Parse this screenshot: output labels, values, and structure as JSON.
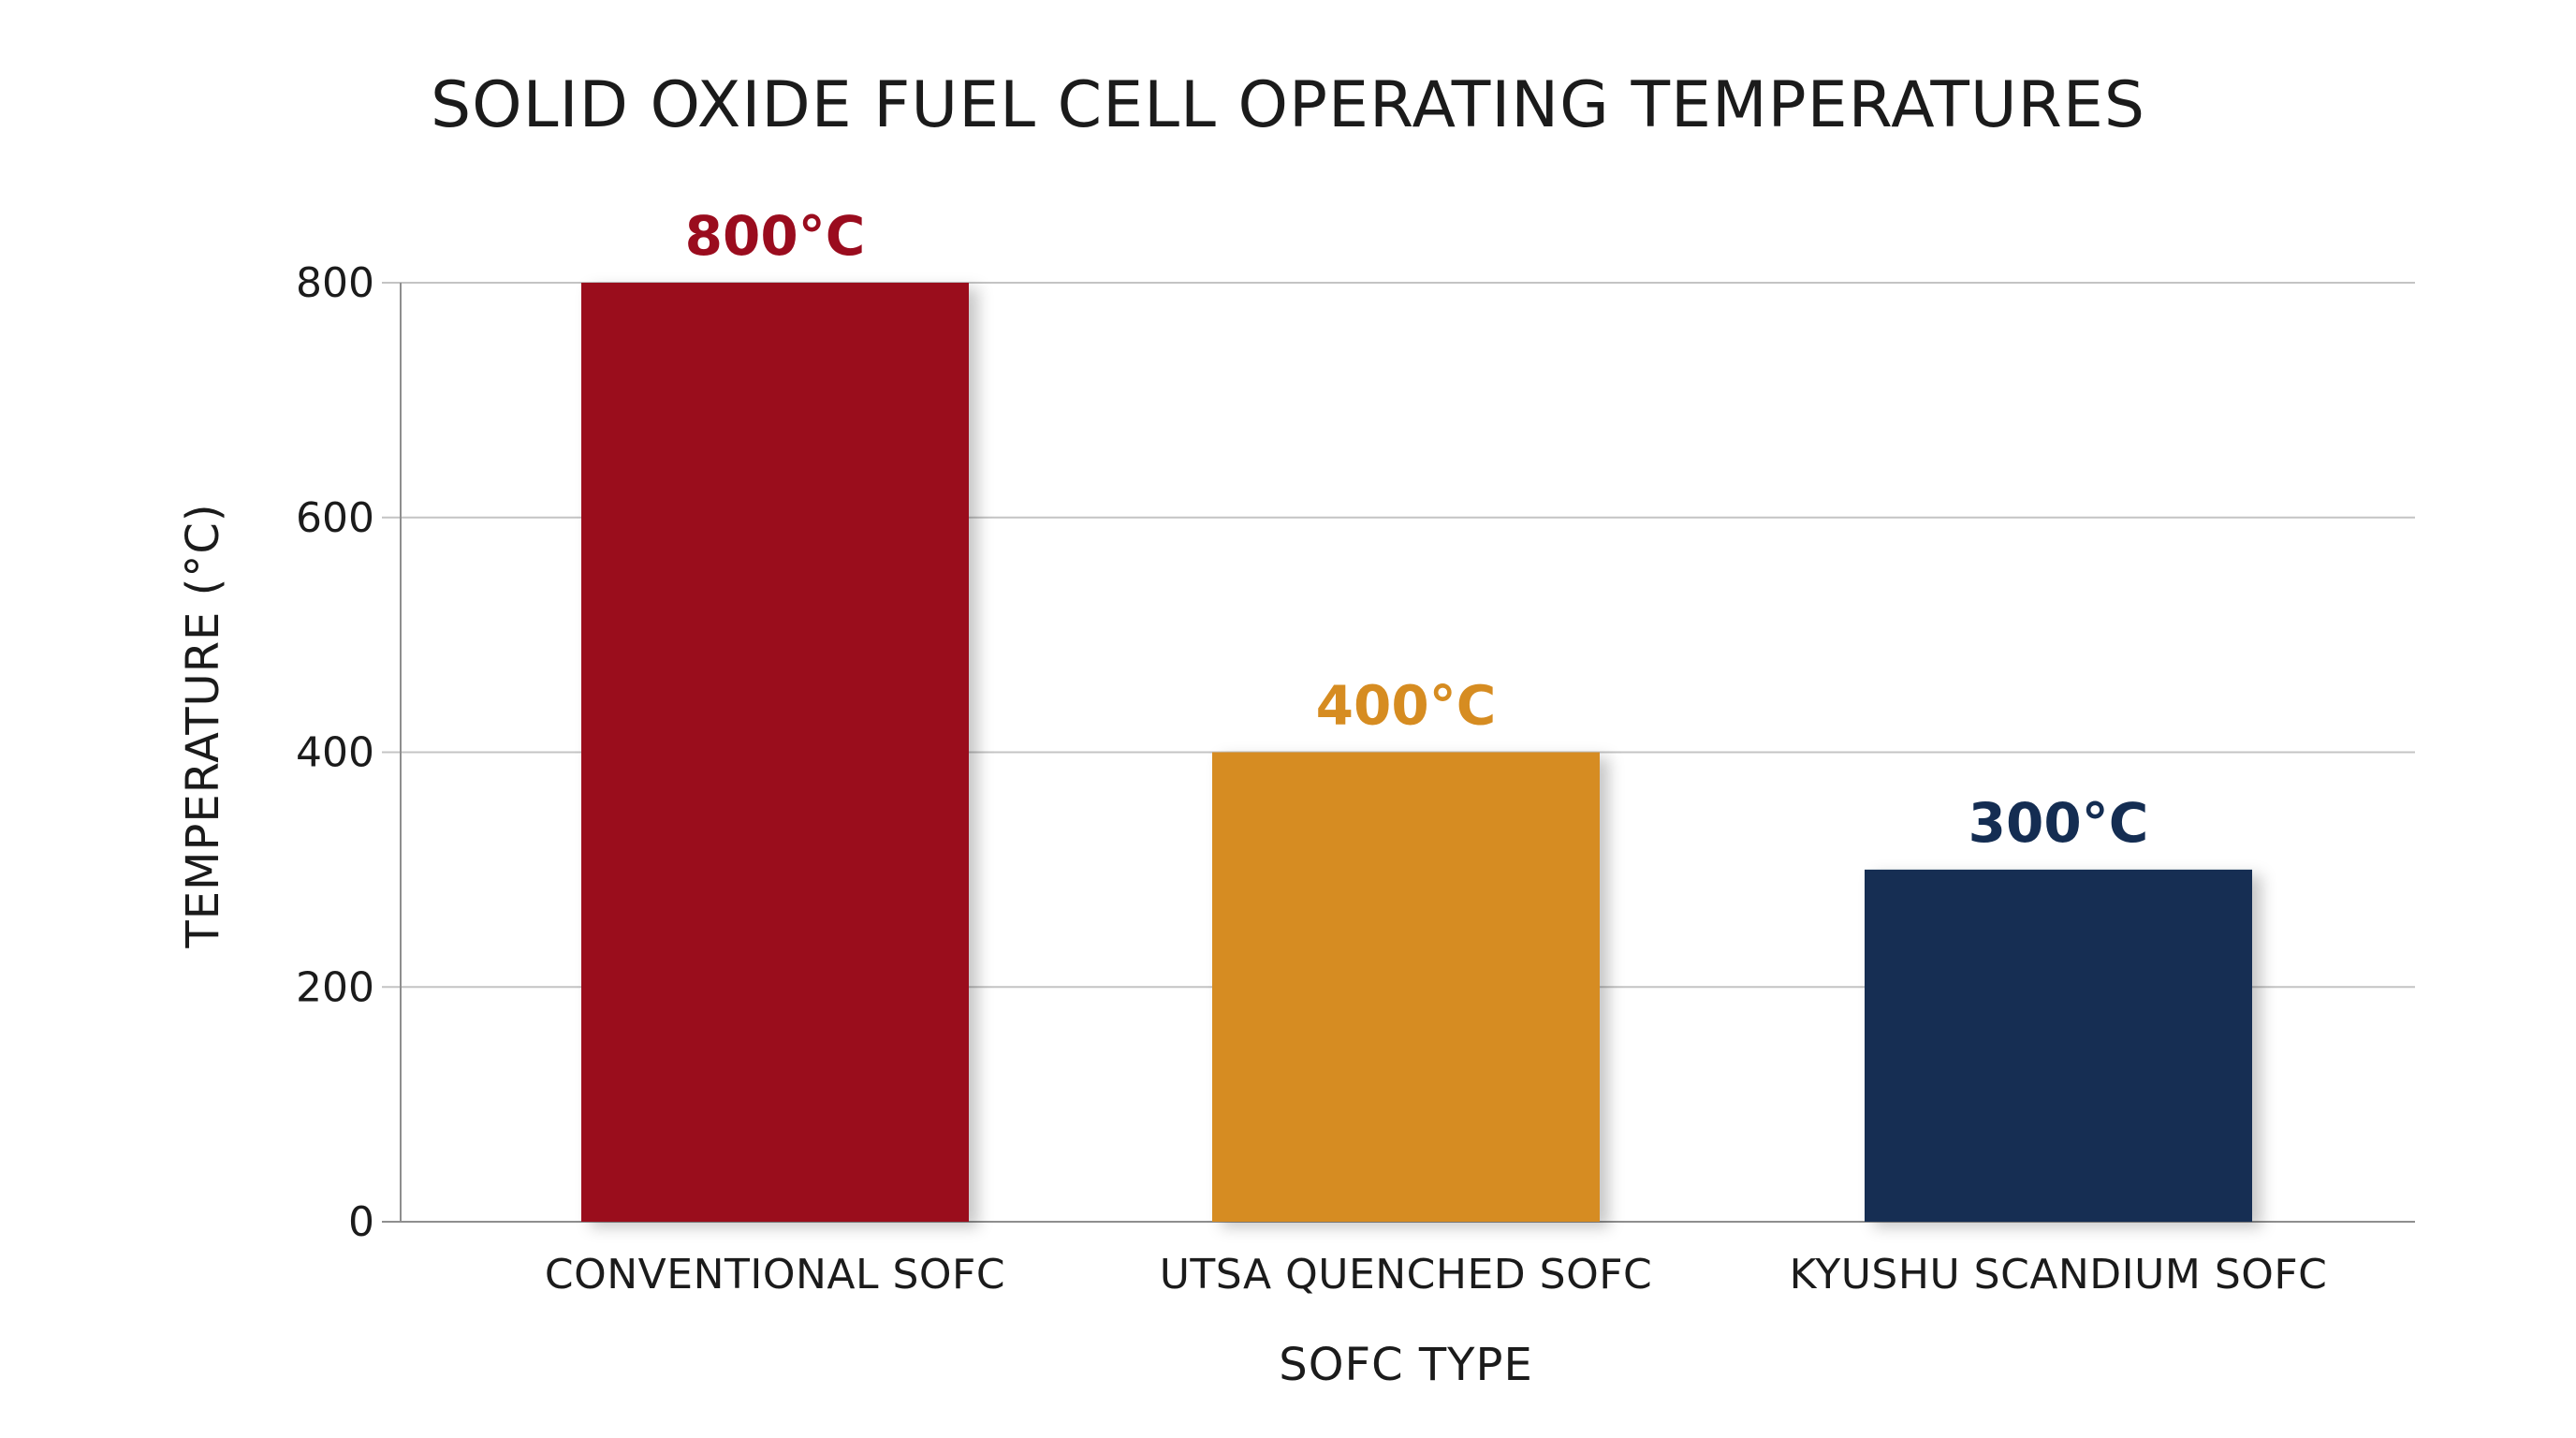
{
  "chart_data": {
    "type": "bar",
    "title": "SOLID OXIDE FUEL CELL OPERATING TEMPERATURES",
    "xlabel": "SOFC TYPE",
    "ylabel": "TEMPERATURE (°C)",
    "categories": [
      "CONVENTIONAL SOFC",
      "UTSA QUENCHED SOFC",
      "KYUSHU SCANDIUM SOFC"
    ],
    "values": [
      800,
      400,
      300
    ],
    "data_labels": [
      "800°C",
      "400°C",
      "300°C"
    ],
    "colors": [
      "#9a0c1e",
      "#d68c21",
      "#142d52"
    ],
    "ylim": [
      0,
      800
    ],
    "yticks": [
      0,
      200,
      400,
      600,
      800
    ],
    "ytick_labels": [
      "0",
      "200",
      "400",
      "600",
      "800"
    ],
    "grid": true,
    "legend": "none"
  }
}
